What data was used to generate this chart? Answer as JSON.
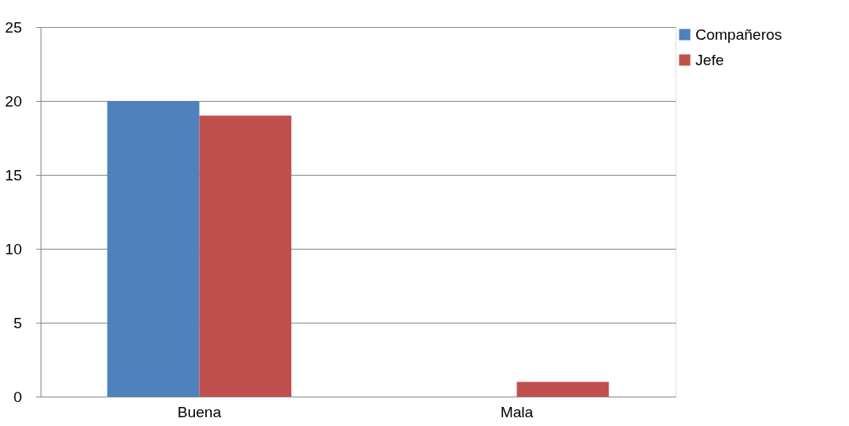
{
  "chart_data": {
    "type": "bar",
    "categories": [
      "Buena",
      "Mala"
    ],
    "series": [
      {
        "name": "Compañeros",
        "color": "#4f81bd",
        "values": [
          20,
          0
        ]
      },
      {
        "name": "Jefe",
        "color": "#c0504d",
        "values": [
          19,
          1
        ]
      }
    ],
    "ylim": [
      0,
      25
    ],
    "yticks": [
      0,
      5,
      10,
      15,
      20,
      25
    ],
    "grid": "y",
    "legend": "right"
  }
}
